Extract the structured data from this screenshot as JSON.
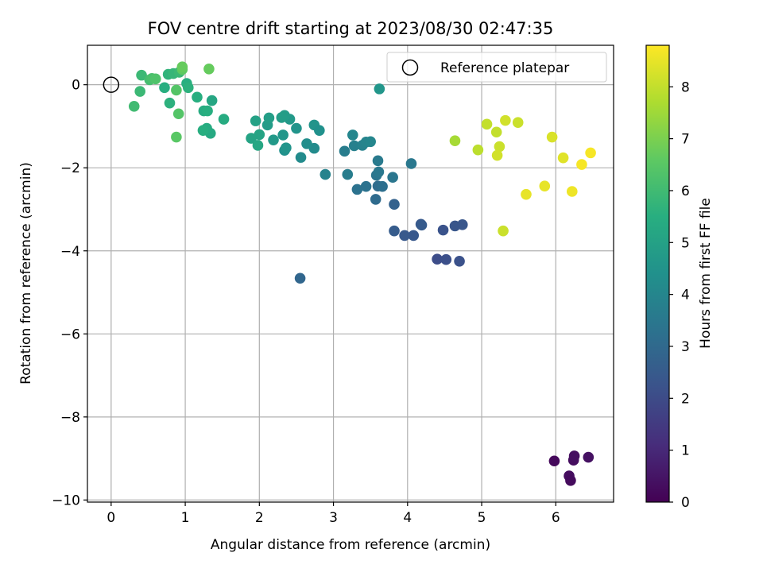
{
  "chart_data": {
    "type": "scatter",
    "title": "FOV centre drift starting at 2023/08/30 02:47:35",
    "xlabel": "Angular distance from reference (arcmin)",
    "ylabel": "Rotation from reference (arcmin)",
    "xlim": [
      -0.32,
      6.78
    ],
    "ylim": [
      -10.05,
      0.95
    ],
    "xticks": [
      0,
      1,
      2,
      3,
      4,
      5,
      6
    ],
    "yticks": [
      -10,
      -8,
      -6,
      -4,
      -2,
      0
    ],
    "grid": true,
    "colormap": "viridis",
    "colorbar": {
      "label": "Hours from first FF file",
      "range": [
        0,
        8.8
      ],
      "ticks": [
        0,
        1,
        2,
        3,
        4,
        5,
        6,
        7,
        8
      ]
    },
    "legend": {
      "placement": "top-right",
      "entries": [
        "Reference platepar"
      ]
    },
    "reference_point": {
      "x": 0,
      "y": 0
    },
    "points": [
      {
        "x": 5.98,
        "y": -9.06,
        "c": 0.2
      },
      {
        "x": 6.18,
        "y": -9.42,
        "c": 0.3
      },
      {
        "x": 6.2,
        "y": -9.53,
        "c": 0.25
      },
      {
        "x": 6.24,
        "y": -9.04,
        "c": 0.3
      },
      {
        "x": 6.25,
        "y": -8.94,
        "c": 0.35
      },
      {
        "x": 6.44,
        "y": -8.97,
        "c": 0.4
      },
      {
        "x": 2.55,
        "y": -4.66,
        "c": 2.9
      },
      {
        "x": 4.4,
        "y": -4.2,
        "c": 2.05
      },
      {
        "x": 4.52,
        "y": -4.21,
        "c": 2.15
      },
      {
        "x": 4.7,
        "y": -4.25,
        "c": 2.2
      },
      {
        "x": 4.48,
        "y": -3.5,
        "c": 2.25
      },
      {
        "x": 4.64,
        "y": -3.4,
        "c": 2.35
      },
      {
        "x": 4.74,
        "y": -3.37,
        "c": 2.35
      },
      {
        "x": 4.18,
        "y": -3.36,
        "c": 2.4
      },
      {
        "x": 4.19,
        "y": -3.38,
        "c": 2.5
      },
      {
        "x": 4.08,
        "y": -3.63,
        "c": 2.4
      },
      {
        "x": 3.96,
        "y": -3.63,
        "c": 2.45
      },
      {
        "x": 3.82,
        "y": -3.52,
        "c": 2.55
      },
      {
        "x": 3.82,
        "y": -2.88,
        "c": 2.75
      },
      {
        "x": 3.57,
        "y": -2.76,
        "c": 3.05
      },
      {
        "x": 3.6,
        "y": -2.44,
        "c": 3.1
      },
      {
        "x": 3.66,
        "y": -2.45,
        "c": 3.2
      },
      {
        "x": 3.44,
        "y": -2.45,
        "c": 3.3
      },
      {
        "x": 3.32,
        "y": -2.52,
        "c": 3.3
      },
      {
        "x": 3.58,
        "y": -2.18,
        "c": 3.4
      },
      {
        "x": 3.61,
        "y": -2.1,
        "c": 3.5
      },
      {
        "x": 3.8,
        "y": -2.23,
        "c": 3.45
      },
      {
        "x": 4.05,
        "y": -1.9,
        "c": 3.5
      },
      {
        "x": 3.6,
        "y": -1.83,
        "c": 3.6
      },
      {
        "x": 3.19,
        "y": -2.16,
        "c": 3.7
      },
      {
        "x": 2.89,
        "y": -2.16,
        "c": 3.9
      },
      {
        "x": 3.15,
        "y": -1.6,
        "c": 3.7
      },
      {
        "x": 3.28,
        "y": -1.47,
        "c": 3.8
      },
      {
        "x": 3.39,
        "y": -1.46,
        "c": 3.85
      },
      {
        "x": 3.44,
        "y": -1.38,
        "c": 3.95
      },
      {
        "x": 3.5,
        "y": -1.37,
        "c": 4.0
      },
      {
        "x": 3.26,
        "y": -1.21,
        "c": 4.0
      },
      {
        "x": 3.62,
        "y": -0.1,
        "c": 4.6
      },
      {
        "x": 2.56,
        "y": -1.75,
        "c": 4.2
      },
      {
        "x": 2.74,
        "y": -1.53,
        "c": 4.2
      },
      {
        "x": 2.64,
        "y": -1.42,
        "c": 4.3
      },
      {
        "x": 2.34,
        "y": -1.58,
        "c": 4.4
      },
      {
        "x": 2.36,
        "y": -1.52,
        "c": 4.5
      },
      {
        "x": 2.32,
        "y": -1.21,
        "c": 4.6
      },
      {
        "x": 2.19,
        "y": -1.33,
        "c": 4.7
      },
      {
        "x": 2.5,
        "y": -1.05,
        "c": 4.5
      },
      {
        "x": 2.74,
        "y": -0.97,
        "c": 4.5
      },
      {
        "x": 2.81,
        "y": -1.1,
        "c": 4.4
      },
      {
        "x": 2.41,
        "y": -0.83,
        "c": 4.7
      },
      {
        "x": 2.34,
        "y": -0.74,
        "c": 4.8
      },
      {
        "x": 2.3,
        "y": -0.79,
        "c": 4.85
      },
      {
        "x": 2.11,
        "y": -0.97,
        "c": 4.8
      },
      {
        "x": 2.13,
        "y": -0.8,
        "c": 4.9
      },
      {
        "x": 1.95,
        "y": -0.87,
        "c": 5.0
      },
      {
        "x": 2.0,
        "y": -1.2,
        "c": 5.1
      },
      {
        "x": 1.89,
        "y": -1.29,
        "c": 5.1
      },
      {
        "x": 1.98,
        "y": -1.46,
        "c": 5.2
      },
      {
        "x": 1.52,
        "y": -0.83,
        "c": 5.4
      },
      {
        "x": 1.34,
        "y": -1.17,
        "c": 5.3
      },
      {
        "x": 1.29,
        "y": -1.05,
        "c": 5.4
      },
      {
        "x": 1.24,
        "y": -1.1,
        "c": 5.5
      },
      {
        "x": 1.36,
        "y": -0.38,
        "c": 5.2
      },
      {
        "x": 1.25,
        "y": -0.63,
        "c": 5.4
      },
      {
        "x": 1.3,
        "y": -0.63,
        "c": 5.5
      },
      {
        "x": 1.16,
        "y": -0.3,
        "c": 5.5
      },
      {
        "x": 1.02,
        "y": 0.03,
        "c": 5.5
      },
      {
        "x": 1.04,
        "y": -0.07,
        "c": 5.6
      },
      {
        "x": 0.72,
        "y": -0.07,
        "c": 5.5
      },
      {
        "x": 0.79,
        "y": -0.44,
        "c": 5.6
      },
      {
        "x": 0.77,
        "y": 0.25,
        "c": 5.7
      },
      {
        "x": 0.84,
        "y": 0.27,
        "c": 5.8
      },
      {
        "x": 0.92,
        "y": 0.3,
        "c": 5.9
      },
      {
        "x": 0.41,
        "y": 0.23,
        "c": 5.9
      },
      {
        "x": 0.39,
        "y": -0.16,
        "c": 5.9
      },
      {
        "x": 0.31,
        "y": -0.52,
        "c": 6.0
      },
      {
        "x": 0.52,
        "y": 0.12,
        "c": 6.1
      },
      {
        "x": 0.55,
        "y": 0.15,
        "c": 6.2
      },
      {
        "x": 0.6,
        "y": 0.14,
        "c": 6.3
      },
      {
        "x": 0.88,
        "y": -0.13,
        "c": 6.4
      },
      {
        "x": 0.91,
        "y": -0.7,
        "c": 6.4
      },
      {
        "x": 0.88,
        "y": -1.26,
        "c": 6.5
      },
      {
        "x": 0.96,
        "y": 0.37,
        "c": 6.6
      },
      {
        "x": 0.96,
        "y": 0.43,
        "c": 6.7
      },
      {
        "x": 1.32,
        "y": 0.38,
        "c": 6.7
      },
      {
        "x": 4.64,
        "y": -1.35,
        "c": 7.6
      },
      {
        "x": 4.95,
        "y": -1.57,
        "c": 7.9
      },
      {
        "x": 5.07,
        "y": -0.95,
        "c": 8.0
      },
      {
        "x": 5.2,
        "y": -1.14,
        "c": 8.0
      },
      {
        "x": 5.24,
        "y": -1.49,
        "c": 8.1
      },
      {
        "x": 5.21,
        "y": -1.7,
        "c": 8.2
      },
      {
        "x": 5.32,
        "y": -0.86,
        "c": 8.2
      },
      {
        "x": 5.49,
        "y": -0.91,
        "c": 8.1
      },
      {
        "x": 5.29,
        "y": -3.52,
        "c": 8.1
      },
      {
        "x": 5.95,
        "y": -1.26,
        "c": 8.3
      },
      {
        "x": 6.1,
        "y": -1.76,
        "c": 8.4
      },
      {
        "x": 5.85,
        "y": -2.44,
        "c": 8.5
      },
      {
        "x": 5.6,
        "y": -2.64,
        "c": 8.5
      },
      {
        "x": 6.22,
        "y": -2.57,
        "c": 8.6
      },
      {
        "x": 6.35,
        "y": -1.92,
        "c": 8.7
      },
      {
        "x": 6.47,
        "y": -1.64,
        "c": 8.7
      }
    ]
  }
}
